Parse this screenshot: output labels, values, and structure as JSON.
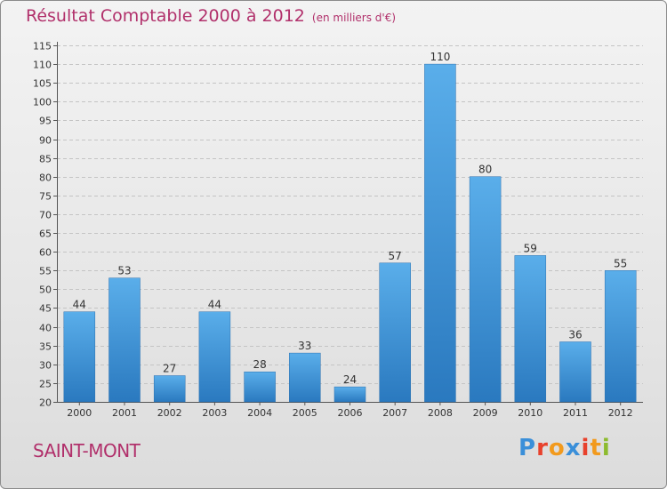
{
  "header": {
    "title": "Résultat Comptable 2000 à 2012",
    "subtitle": "(en milliers d'€)"
  },
  "footer": {
    "commune": "SAINT-MONT",
    "logo_text": "Proxiti",
    "logo_colors": [
      "#3a8fd9",
      "#e8412c",
      "#f29a1d",
      "#3a8fd9",
      "#e8412c",
      "#f29a1d",
      "#8dbb2f"
    ]
  },
  "chart_data": {
    "type": "bar",
    "title": "Résultat Comptable 2000 à 2012",
    "subtitle": "(en milliers d'€)",
    "xlabel": "",
    "ylabel": "",
    "categories": [
      "2000",
      "2001",
      "2002",
      "2003",
      "2004",
      "2005",
      "2006",
      "2007",
      "2008",
      "2009",
      "2010",
      "2011",
      "2012"
    ],
    "values": [
      44,
      53,
      27,
      44,
      28,
      33,
      24,
      57,
      110,
      80,
      59,
      36,
      55
    ],
    "ylim": [
      20,
      115
    ],
    "yticks": [
      20,
      25,
      30,
      35,
      40,
      45,
      50,
      55,
      60,
      65,
      70,
      75,
      80,
      85,
      90,
      95,
      100,
      105,
      110,
      115
    ],
    "grid": true,
    "legend": "none",
    "bar_color": "#3a8fd9"
  }
}
